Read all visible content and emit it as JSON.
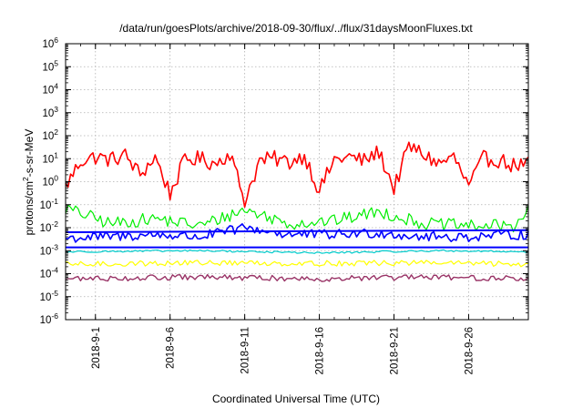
{
  "chart_data": {
    "type": "line",
    "title": "/data/run/goesPlots/archive/2018-09-30/flux/../flux/31daysMoonFluxes.txt",
    "xlabel": "Coordinated Universal Time (UTC)",
    "ylabel": "protons/cm2-s-sr-MeV",
    "ylabel_parts": {
      "a": "protons/cm",
      "sup": "2",
      "b": "-s-sr-MeV"
    },
    "yscale": "log",
    "ylim": [
      1e-06,
      1000000
    ],
    "xlim": [
      "2018-08-30",
      "2018-09-30"
    ],
    "grid": true,
    "legend": "none",
    "x_ticks": [
      {
        "date": "2018-09-01",
        "label": "2018-9-1"
      },
      {
        "date": "2018-09-06",
        "label": "2018-9-6"
      },
      {
        "date": "2018-09-11",
        "label": "2018-9-11"
      },
      {
        "date": "2018-09-16",
        "label": "2018-9-16"
      },
      {
        "date": "2018-09-21",
        "label": "2018-9-21"
      },
      {
        "date": "2018-09-26",
        "label": "2018-9-26"
      }
    ],
    "y_ticks": [
      {
        "value": 1e-06,
        "base": "10",
        "exp": "-6"
      },
      {
        "value": 1e-05,
        "base": "10",
        "exp": "-5"
      },
      {
        "value": 0.0001,
        "base": "10",
        "exp": "-4"
      },
      {
        "value": 0.001,
        "base": "10",
        "exp": "-3"
      },
      {
        "value": 0.01,
        "base": "10",
        "exp": "-2"
      },
      {
        "value": 0.1,
        "base": "10",
        "exp": "-1"
      },
      {
        "value": 1,
        "base": "10",
        "exp": "0"
      },
      {
        "value": 10,
        "base": "10",
        "exp": "1"
      },
      {
        "value": 100,
        "base": "10",
        "exp": "2"
      },
      {
        "value": 1000,
        "base": "10",
        "exp": "3"
      },
      {
        "value": 10000,
        "base": "10",
        "exp": "4"
      },
      {
        "value": 100000,
        "base": "10",
        "exp": "5"
      },
      {
        "value": 1000000,
        "base": "10",
        "exp": "6"
      }
    ],
    "series": [
      {
        "color": "#ff0000",
        "x": [
          "2018-08-30",
          "2018-08-31",
          "2018-09-01",
          "2018-09-02",
          "2018-09-03",
          "2018-09-04",
          "2018-09-05",
          "2018-09-06",
          "2018-09-07",
          "2018-09-08",
          "2018-09-09",
          "2018-09-10",
          "2018-09-11",
          "2018-09-12",
          "2018-09-13",
          "2018-09-14",
          "2018-09-15",
          "2018-09-16",
          "2018-09-17",
          "2018-09-18",
          "2018-09-19",
          "2018-09-20",
          "2018-09-21",
          "2018-09-22",
          "2018-09-23",
          "2018-09-24",
          "2018-09-25",
          "2018-09-26",
          "2018-09-27",
          "2018-09-28",
          "2018-09-29",
          "2018-09-30"
        ],
        "values": [
          0.6,
          8,
          12,
          9,
          14,
          2,
          12,
          0.3,
          9,
          10,
          6,
          18,
          0.15,
          8,
          10,
          7,
          14,
          0.4,
          9,
          12,
          8,
          20,
          0.5,
          35,
          15,
          6,
          12,
          0.6,
          10,
          9,
          5,
          6
        ]
      },
      {
        "color": "#00ee00",
        "x": [
          "2018-08-30",
          "2018-09-02",
          "2018-09-05",
          "2018-09-08",
          "2018-09-11",
          "2018-09-14",
          "2018-09-17",
          "2018-09-20",
          "2018-09-23",
          "2018-09-26",
          "2018-09-29",
          "2018-09-30"
        ],
        "values": [
          0.07,
          0.015,
          0.025,
          0.012,
          0.06,
          0.015,
          0.02,
          0.05,
          0.015,
          0.012,
          0.012,
          0.06
        ]
      },
      {
        "color": "#0000ff",
        "x": [
          "2018-08-30",
          "2018-09-02",
          "2018-09-05",
          "2018-09-08",
          "2018-09-11",
          "2018-09-14",
          "2018-09-17",
          "2018-09-20",
          "2018-09-23",
          "2018-09-26",
          "2018-09-29",
          "2018-09-30"
        ],
        "values": [
          0.0035,
          0.004,
          0.005,
          0.004,
          0.01,
          0.005,
          0.005,
          0.006,
          0.004,
          0.004,
          0.005,
          0.005
        ]
      },
      {
        "color": "#0000ff",
        "x": [
          "2018-08-30",
          "2018-09-30"
        ],
        "values": [
          0.0014,
          0.0014
        ]
      },
      {
        "color": "#0000ff",
        "x": [
          "2018-08-30",
          "2018-09-30"
        ],
        "values": [
          0.0072,
          0.0072
        ]
      },
      {
        "color": "#00cccc",
        "x": [
          "2018-08-30",
          "2018-09-08",
          "2018-09-16",
          "2018-09-24",
          "2018-09-30"
        ],
        "values": [
          0.0009,
          0.001,
          0.0008,
          0.001,
          0.0009
        ]
      },
      {
        "color": "#ffff00",
        "x": [
          "2018-08-30",
          "2018-09-08",
          "2018-09-16",
          "2018-09-24",
          "2018-09-30"
        ],
        "values": [
          0.00025,
          0.0003,
          0.00028,
          0.0003,
          0.00025
        ]
      },
      {
        "color": "#993366",
        "x": [
          "2018-08-30",
          "2018-09-08",
          "2018-09-16",
          "2018-09-24",
          "2018-09-30"
        ],
        "values": [
          6e-05,
          7e-05,
          6e-05,
          7e-05,
          6e-05
        ]
      }
    ]
  }
}
